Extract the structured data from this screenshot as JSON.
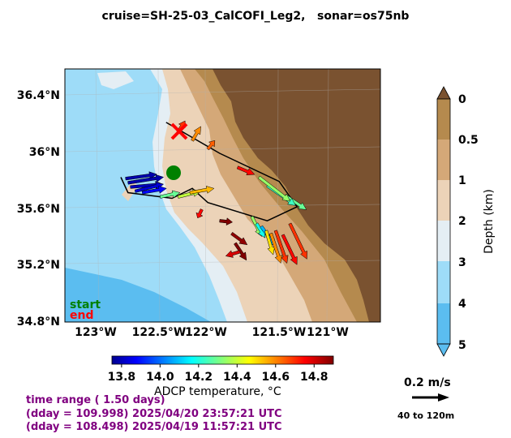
{
  "title": "cruise=SH-25-03_CalCOFI_Leg2,   sonar=os75nb",
  "map": {
    "lat_ticks": [
      "36.4°N",
      "36°N",
      "35.6°N",
      "35.2°N",
      "34.8°N"
    ],
    "lon_ticks": [
      "123°W",
      "122.5°W",
      "122°W",
      "121.5°W",
      "121°W"
    ],
    "start_label": "start",
    "end_label": "end",
    "start_color": "#008000",
    "end_color": "#ff0000"
  },
  "depth_colorbar": {
    "label": "Depth (km)",
    "ticks": [
      "0",
      "0.5",
      "1",
      "2",
      "3",
      "4",
      "5"
    ],
    "colors": [
      "#7a5230",
      "#b58a4e",
      "#d4a878",
      "#ecd3b8",
      "#e4eef4",
      "#9edcf8",
      "#5bbdf0"
    ]
  },
  "temp_colorbar": {
    "label": "ADCP temperature, °C",
    "ticks": [
      "13.8",
      "14.0",
      "14.2",
      "14.4",
      "14.6",
      "14.8"
    ],
    "range": [
      13.75,
      14.9
    ],
    "colormap": "jet"
  },
  "scale": {
    "label": "0.2 m/s",
    "range": "40 to 120m"
  },
  "info": {
    "line1": "time range ( 1.50 days)",
    "line2": "(dday = 109.998) 2025/04/20 23:57:21 UTC",
    "line3": "(dday = 108.498) 2025/04/19 11:57:21 UTC"
  },
  "chart_data": {
    "type": "vector-map",
    "title": "cruise=SH-25-03_CalCOFI_Leg2,   sonar=os75nb",
    "xlim": [
      -123.25,
      -120.6
    ],
    "ylim": [
      34.8,
      36.6
    ],
    "track": [
      [
        -122.78,
        35.83
      ],
      [
        -122.72,
        35.72
      ],
      [
        -122.35,
        35.68
      ],
      [
        -122.18,
        35.75
      ],
      [
        -122.05,
        35.65
      ],
      [
        -121.55,
        35.52
      ],
      [
        -121.3,
        35.62
      ],
      [
        -121.45,
        35.8
      ],
      [
        -121.95,
        36.0
      ],
      [
        -122.4,
        36.22
      ]
    ],
    "vectors": [
      {
        "lon": -122.74,
        "lat": 35.82,
        "u": 0.22,
        "v": 0.03,
        "temp": 13.8
      },
      {
        "lon": -122.72,
        "lat": 35.79,
        "u": 0.25,
        "v": 0.04,
        "temp": 13.8
      },
      {
        "lon": -122.7,
        "lat": 35.76,
        "u": 0.23,
        "v": 0.02,
        "temp": 13.82
      },
      {
        "lon": -122.66,
        "lat": 35.73,
        "u": 0.2,
        "v": 0.05,
        "temp": 13.85
      },
      {
        "lon": -122.6,
        "lat": 35.72,
        "u": 0.17,
        "v": 0.03,
        "temp": 13.9
      },
      {
        "lon": -122.45,
        "lat": 35.69,
        "u": 0.14,
        "v": 0.03,
        "temp": 14.3
      },
      {
        "lon": -122.3,
        "lat": 35.69,
        "u": 0.16,
        "v": 0.04,
        "temp": 14.4
      },
      {
        "lon": -122.2,
        "lat": 35.72,
        "u": 0.17,
        "v": 0.03,
        "temp": 14.55
      },
      {
        "lon": -122.1,
        "lat": 35.6,
        "u": -0.03,
        "v": -0.06,
        "temp": 14.75
      },
      {
        "lon": -121.95,
        "lat": 35.52,
        "u": 0.09,
        "v": -0.01,
        "temp": 14.9
      },
      {
        "lon": -121.85,
        "lat": 35.43,
        "u": 0.11,
        "v": -0.08,
        "temp": 14.88
      },
      {
        "lon": -121.82,
        "lat": 35.36,
        "u": 0.08,
        "v": -0.12,
        "temp": 14.9
      },
      {
        "lon": -121.78,
        "lat": 35.3,
        "u": -0.1,
        "v": -0.03,
        "temp": 14.8
      },
      {
        "lon": -121.68,
        "lat": 35.55,
        "u": 0.07,
        "v": -0.14,
        "temp": 14.35
      },
      {
        "lon": -121.64,
        "lat": 35.5,
        "u": 0.06,
        "v": -0.1,
        "temp": 14.2
      },
      {
        "lon": -121.6,
        "lat": 35.48,
        "u": 0.1,
        "v": -0.14,
        "temp": 14.1
      },
      {
        "lon": -121.56,
        "lat": 35.45,
        "u": 0.05,
        "v": -0.17,
        "temp": 14.5
      },
      {
        "lon": -121.52,
        "lat": 35.43,
        "u": 0.07,
        "v": -0.21,
        "temp": 14.6
      },
      {
        "lon": -121.48,
        "lat": 35.45,
        "u": 0.08,
        "v": -0.23,
        "temp": 14.7
      },
      {
        "lon": -121.42,
        "lat": 35.42,
        "u": 0.1,
        "v": -0.21,
        "temp": 14.75
      },
      {
        "lon": -121.36,
        "lat": 35.5,
        "u": 0.12,
        "v": -0.25,
        "temp": 14.7
      },
      {
        "lon": -121.4,
        "lat": 35.7,
        "u": 0.15,
        "v": -0.1,
        "temp": 14.3
      },
      {
        "lon": -121.55,
        "lat": 35.77,
        "u": 0.2,
        "v": -0.14,
        "temp": 14.25
      },
      {
        "lon": -121.62,
        "lat": 35.83,
        "u": 0.22,
        "v": -0.17,
        "temp": 14.35
      },
      {
        "lon": -121.8,
        "lat": 35.9,
        "u": 0.12,
        "v": -0.05,
        "temp": 14.75
      },
      {
        "lon": -122.05,
        "lat": 36.03,
        "u": 0.05,
        "v": 0.06,
        "temp": 14.65
      },
      {
        "lon": -122.18,
        "lat": 36.09,
        "u": 0.06,
        "v": 0.1,
        "temp": 14.6
      },
      {
        "lon": -122.3,
        "lat": 36.15,
        "u": 0.05,
        "v": 0.08,
        "temp": 14.7
      }
    ]
  }
}
